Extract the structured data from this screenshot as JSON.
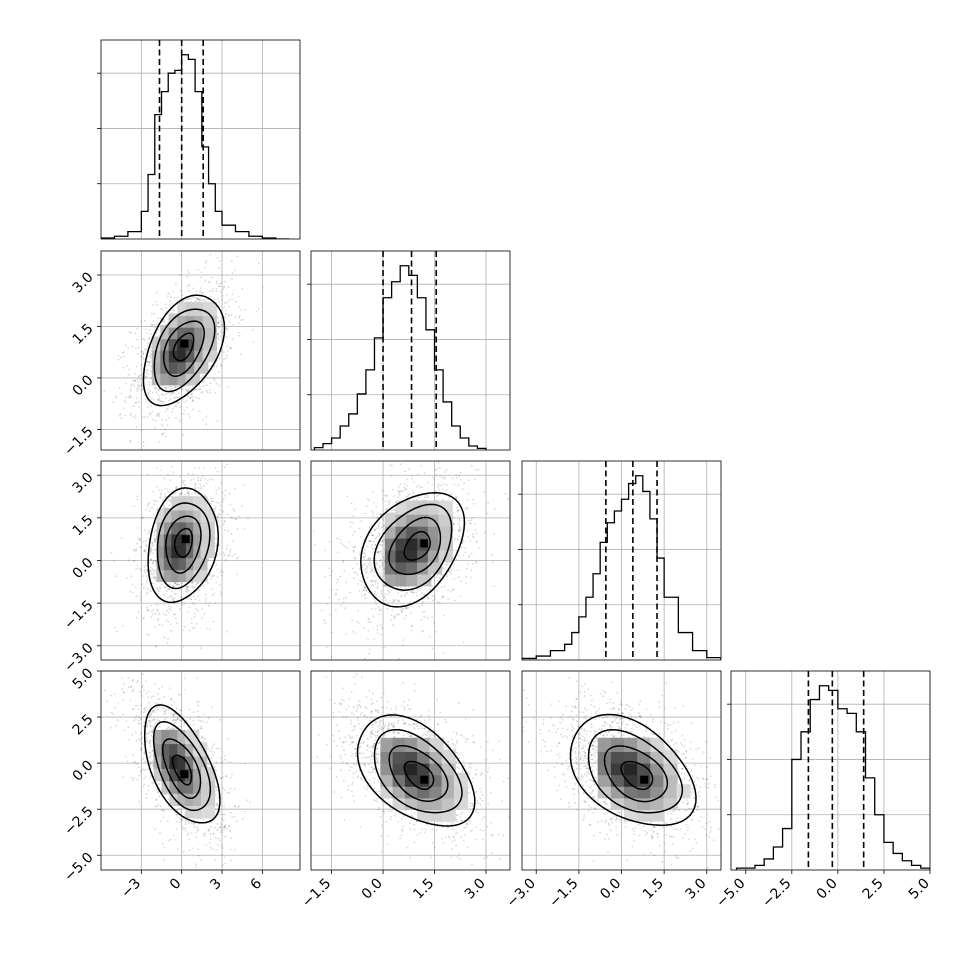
{
  "chart_data": {
    "type": "corner",
    "title": "",
    "dims": [
      {
        "index": 0,
        "range": [
          -6,
          8.8
        ],
        "ticks": [
          "-3",
          "0",
          "3",
          "6"
        ],
        "quantiles": [
          -1.65,
          0.0,
          1.6
        ]
      },
      {
        "index": 1,
        "range": [
          -2.1,
          3.7
        ],
        "ticks": [
          "-1.5",
          "0.0",
          "1.5",
          "3.0"
        ],
        "quantiles": [
          0.0,
          0.83,
          1.55
        ]
      },
      {
        "index": 2,
        "range": [
          -3.5,
          3.5
        ],
        "ticks": [
          "-3.0",
          "-1.5",
          "0.0",
          "1.5",
          "3.0"
        ],
        "quantiles": [
          -0.55,
          0.4,
          1.25
        ]
      },
      {
        "index": 3,
        "range": [
          -5.8,
          5.0
        ],
        "ticks": [
          "-5.0",
          "-2.5",
          "0.0",
          "2.5",
          "5.0"
        ],
        "quantiles": [
          -1.6,
          -0.3,
          1.4
        ]
      }
    ],
    "histograms": [
      {
        "dim": 0,
        "edges": [
          -6,
          -5,
          -4,
          -3,
          -2.5,
          -2,
          -1.5,
          -1,
          -0.5,
          0,
          0.5,
          1,
          1.5,
          2,
          2.5,
          3,
          4,
          5,
          6,
          7,
          8
        ],
        "counts": [
          1,
          3,
          8,
          30,
          70,
          135,
          160,
          180,
          183,
          200,
          195,
          160,
          100,
          60,
          30,
          15,
          8,
          3,
          1,
          0
        ]
      },
      {
        "dim": 1,
        "edges": [
          -2.0,
          -1.75,
          -1.5,
          -1.25,
          -1.0,
          -0.75,
          -0.5,
          -0.25,
          0,
          0.25,
          0.5,
          0.75,
          1.0,
          1.25,
          1.5,
          1.75,
          2.0,
          2.25,
          2.5,
          2.75,
          3.0
        ],
        "counts": [
          3,
          8,
          15,
          30,
          45,
          70,
          100,
          140,
          190,
          210,
          230,
          218,
          190,
          150,
          100,
          60,
          30,
          15,
          5,
          2
        ]
      },
      {
        "dim": 2,
        "edges": [
          -3.5,
          -3.0,
          -2.5,
          -2.0,
          -1.75,
          -1.5,
          -1.25,
          -1.0,
          -0.75,
          -0.5,
          -0.25,
          0,
          0.25,
          0.5,
          0.75,
          1.0,
          1.25,
          1.5,
          2.0,
          2.5,
          3.0,
          3.5
        ],
        "counts": [
          2,
          5,
          12,
          20,
          35,
          55,
          80,
          110,
          150,
          175,
          190,
          205,
          225,
          235,
          215,
          180,
          130,
          80,
          35,
          12,
          3
        ]
      },
      {
        "dim": 3,
        "edges": [
          -5.5,
          -4.5,
          -4.0,
          -3.5,
          -3.0,
          -2.5,
          -2.0,
          -1.5,
          -1.0,
          -0.5,
          0,
          0.5,
          1.0,
          1.5,
          2.0,
          2.5,
          3.0,
          3.5,
          4.0,
          4.5,
          5.0
        ],
        "counts": [
          2,
          5,
          12,
          25,
          45,
          120,
          150,
          185,
          200,
          195,
          175,
          170,
          150,
          100,
          60,
          30,
          18,
          10,
          5,
          2
        ]
      }
    ],
    "pairs": [
      {
        "x": 0,
        "y": 1,
        "center": [
          0.1,
          0.8
        ],
        "mode": [
          0.2,
          1.0
        ],
        "sd": [
          1.5,
          0.8
        ],
        "rho": 0.45
      },
      {
        "x": 0,
        "y": 2,
        "center": [
          0.0,
          0.5
        ],
        "mode": [
          0.3,
          0.75
        ],
        "sd": [
          1.3,
          1.0
        ],
        "rho": 0.2
      },
      {
        "x": 1,
        "y": 2,
        "center": [
          0.8,
          0.4
        ],
        "mode": [
          1.2,
          0.6
        ],
        "sd": [
          0.75,
          1.0
        ],
        "rho": 0.35
      },
      {
        "x": 0,
        "y": 3,
        "center": [
          -0.1,
          -0.1
        ],
        "mode": [
          0.2,
          -0.6
        ],
        "sd": [
          1.4,
          1.6
        ],
        "rho": -0.55
      },
      {
        "x": 1,
        "y": 3,
        "center": [
          0.9,
          -0.4
        ],
        "mode": [
          1.2,
          -0.9
        ],
        "sd": [
          0.85,
          1.5
        ],
        "rho": -0.45
      },
      {
        "x": 2,
        "y": 3,
        "center": [
          0.3,
          -0.4
        ],
        "mode": [
          0.8,
          -0.9
        ],
        "sd": [
          1.1,
          1.5
        ],
        "rho": -0.4
      }
    ],
    "contour_levels_sigma": [
      0.5,
      1.0,
      1.5,
      2.0
    ],
    "grid": true,
    "legend": "none"
  }
}
